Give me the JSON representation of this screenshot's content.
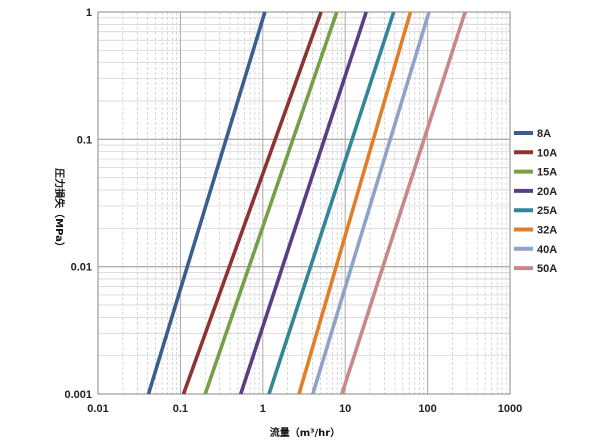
{
  "chart_data": {
    "type": "line",
    "xscale": "log",
    "yscale": "log",
    "xlim": [
      0.01,
      1000
    ],
    "ylim": [
      0.001,
      1
    ],
    "xlabel": "流量（m³/hr）",
    "ylabel": "圧力損失（MPa）",
    "xticks": [
      "0.01",
      "0.1",
      "1",
      "10",
      "100",
      "1000"
    ],
    "yticks": [
      "0.001",
      "0.01",
      "0.1",
      "1"
    ],
    "grid": true,
    "legend_position": "right",
    "series": [
      {
        "name": "8A",
        "color": "#3b5f8c",
        "x": [
          0.041,
          1.06
        ],
        "y": [
          0.001,
          1
        ]
      },
      {
        "name": "10A",
        "color": "#8c3434",
        "x": [
          0.109,
          5.1
        ],
        "y": [
          0.001,
          1
        ]
      },
      {
        "name": "15A",
        "color": "#76a046",
        "x": [
          0.2,
          7.9
        ],
        "y": [
          0.001,
          1
        ]
      },
      {
        "name": "20A",
        "color": "#5a3e82",
        "x": [
          0.54,
          18.0
        ],
        "y": [
          0.001,
          1
        ]
      },
      {
        "name": "25A",
        "color": "#32869a",
        "x": [
          1.19,
          38.8
        ],
        "y": [
          0.001,
          1
        ]
      },
      {
        "name": "32A",
        "color": "#e07f28",
        "x": [
          2.75,
          62.0
        ],
        "y": [
          0.001,
          1
        ]
      },
      {
        "name": "40A",
        "color": "#8ea4c6",
        "x": [
          4.04,
          104
        ],
        "y": [
          0.001,
          1
        ]
      },
      {
        "name": "50A",
        "color": "#c88888",
        "x": [
          9.12,
          285
        ],
        "y": [
          0.001,
          1
        ]
      }
    ]
  }
}
